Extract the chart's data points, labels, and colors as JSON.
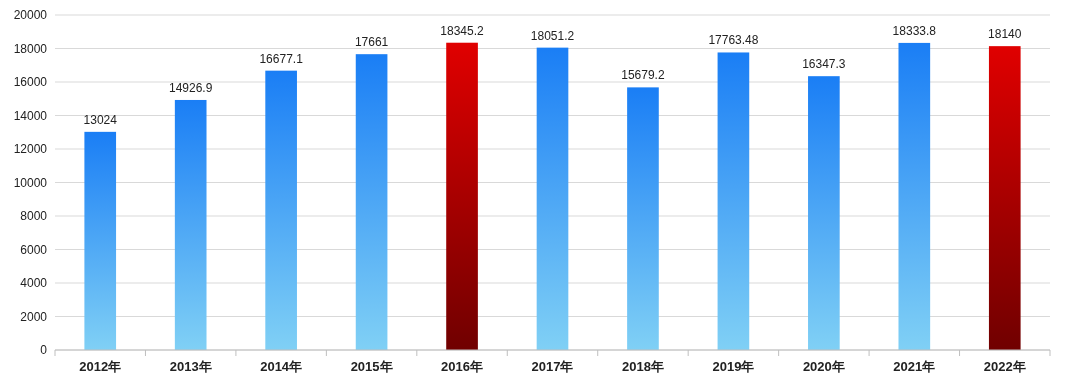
{
  "chart_data": {
    "type": "bar",
    "categories": [
      "2012年",
      "2013年",
      "2014年",
      "2015年",
      "2016年",
      "2017年",
      "2018年",
      "2019年",
      "2020年",
      "2021年",
      "2022年"
    ],
    "values": [
      13024,
      14926.9,
      16677.1,
      17661,
      18345.2,
      18051.2,
      15679.2,
      17763.48,
      16347.3,
      18333.8,
      18140
    ],
    "colors": [
      "#1a7ef5",
      "#1a7ef5",
      "#1a7ef5",
      "#1a7ef5",
      "#e00000",
      "#1a7ef5",
      "#1a7ef5",
      "#1a7ef5",
      "#1a7ef5",
      "#1a7ef5",
      "#e00000"
    ],
    "ylim": [
      0,
      20000
    ],
    "yticks": [
      0,
      2000,
      4000,
      6000,
      8000,
      10000,
      12000,
      14000,
      16000,
      18000,
      20000
    ],
    "grid": "y",
    "data_labels": true
  }
}
